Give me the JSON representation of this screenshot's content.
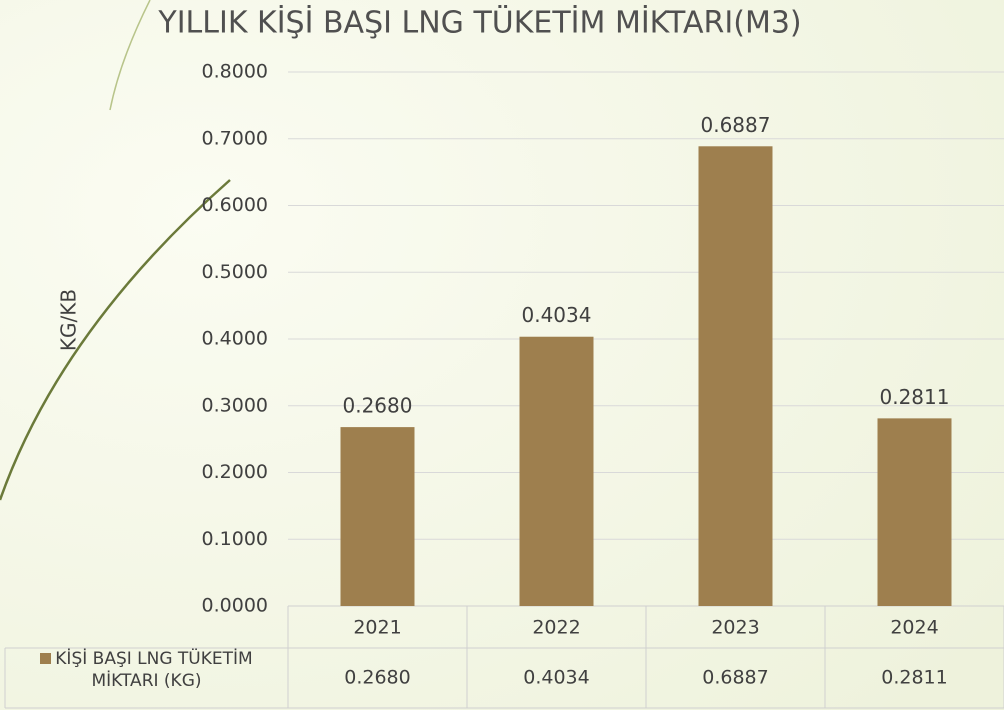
{
  "chart_data": {
    "type": "bar",
    "title": "YILLIK KİŞİ BAŞI LNG TÜKETİM MİKTARI(M3)",
    "y_label": "KG/KB",
    "categories": [
      "2021",
      "2022",
      "2023",
      "2024"
    ],
    "series": [
      {
        "name": "KİŞİ BAŞI LNG TÜKETİM MİKTARI (KG)",
        "color": "#9e7f4e",
        "values": [
          0.268,
          0.4034,
          0.6887,
          0.2811
        ],
        "value_labels": [
          "0.2680",
          "0.4034",
          "0.6887",
          "0.2811"
        ]
      }
    ],
    "ylim": [
      0,
      0.8
    ],
    "yticks": [
      {
        "value": 0,
        "label": "0.0000"
      },
      {
        "value": 0.1,
        "label": "0.1000"
      },
      {
        "value": 0.2,
        "label": "0.2000"
      },
      {
        "value": 0.3,
        "label": "0.3000"
      },
      {
        "value": 0.4,
        "label": "0.4000"
      },
      {
        "value": 0.5,
        "label": "0.5000"
      },
      {
        "value": 0.6,
        "label": "0.6000"
      },
      {
        "value": 0.7,
        "label": "0.7000"
      },
      {
        "value": 0.8,
        "label": "0.8000"
      }
    ],
    "grid": true,
    "data_table": true
  }
}
